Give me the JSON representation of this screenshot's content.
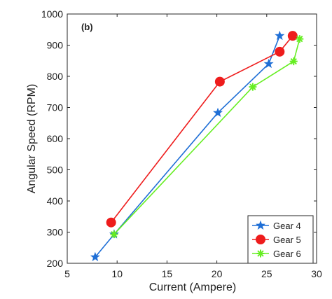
{
  "chart_data": {
    "type": "line",
    "panel_label": "(b)",
    "xlabel": "Current (Ampere)",
    "ylabel": "Angular Speed (RPM)",
    "xlim": [
      5,
      30
    ],
    "ylim": [
      200,
      1000
    ],
    "xticks": [
      5,
      10,
      15,
      20,
      25,
      30
    ],
    "yticks": [
      200,
      300,
      400,
      500,
      600,
      700,
      800,
      900,
      1000
    ],
    "grid": false,
    "legend_position": "bottom-right",
    "series": [
      {
        "name": "Gear 4",
        "color": "#1f6fd6",
        "marker": "star",
        "x": [
          7.8,
          9.7,
          20.1,
          25.2,
          26.3
        ],
        "y": [
          220,
          293,
          683,
          840,
          930
        ]
      },
      {
        "name": "Gear 5",
        "color": "#ee1c1c",
        "marker": "circle",
        "x": [
          9.4,
          20.3,
          26.3,
          27.6
        ],
        "y": [
          331,
          783,
          879,
          930
        ]
      },
      {
        "name": "Gear 6",
        "color": "#66ee22",
        "marker": "asterisk",
        "x": [
          9.7,
          23.6,
          27.7,
          28.3
        ],
        "y": [
          293,
          766,
          848,
          920
        ]
      }
    ]
  }
}
